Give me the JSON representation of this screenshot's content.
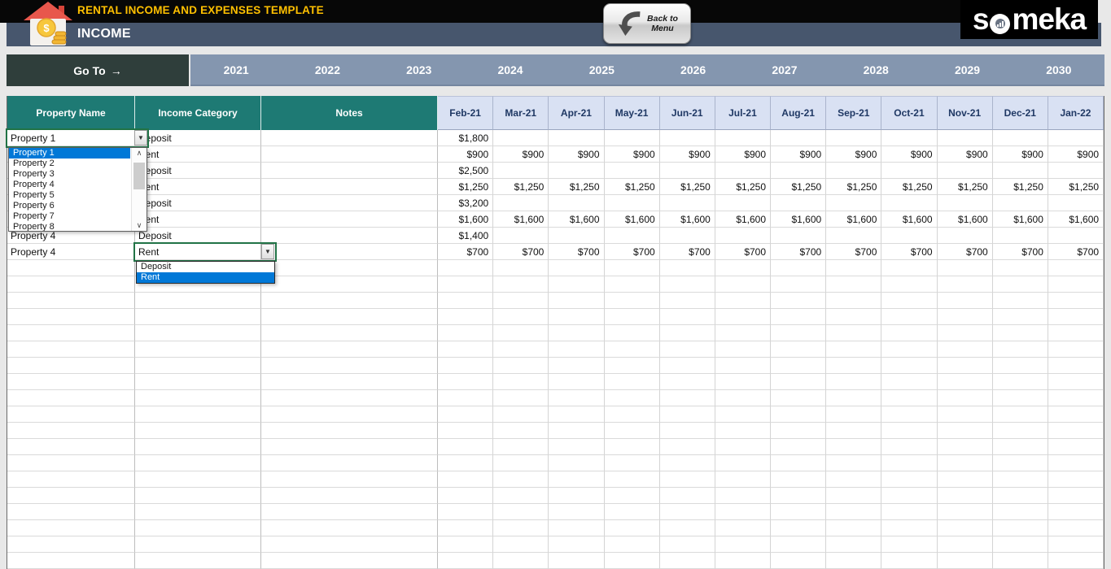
{
  "header": {
    "template_title": "RENTAL INCOME AND EXPENSES TEMPLATE",
    "sheet_title": "INCOME",
    "back_button": {
      "line1": "Back to",
      "line2": "Menu"
    },
    "brand": {
      "prefix": "s",
      "suffix": "meka",
      "full": "someka"
    }
  },
  "nav": {
    "goto_label": "Go To",
    "goto_arrow": "→",
    "years": [
      "2021",
      "2022",
      "2023",
      "2024",
      "2025",
      "2026",
      "2027",
      "2028",
      "2029",
      "2030"
    ]
  },
  "table": {
    "column_headers": [
      "Property Name",
      "Income Category",
      "Notes"
    ],
    "month_headers": [
      "Feb-21",
      "Mar-21",
      "Apr-21",
      "May-21",
      "Jun-21",
      "Jul-21",
      "Aug-21",
      "Sep-21",
      "Oct-21",
      "Nov-21",
      "Dec-21",
      "Jan-22"
    ],
    "rows": [
      {
        "property": "Property 1",
        "category": "Deposit",
        "notes": "",
        "values": [
          "$1,800",
          "",
          "",
          "",
          "",
          "",
          "",
          "",
          "",
          "",
          "",
          ""
        ]
      },
      {
        "property": "",
        "category": "Rent",
        "notes": "",
        "values": [
          "$900",
          "$900",
          "$900",
          "$900",
          "$900",
          "$900",
          "$900",
          "$900",
          "$900",
          "$900",
          "$900",
          "$900"
        ]
      },
      {
        "property": "",
        "category": "Deposit",
        "notes": "",
        "values": [
          "$2,500",
          "",
          "",
          "",
          "",
          "",
          "",
          "",
          "",
          "",
          "",
          ""
        ]
      },
      {
        "property": "",
        "category": "Rent",
        "notes": "",
        "values": [
          "$1,250",
          "$1,250",
          "$1,250",
          "$1,250",
          "$1,250",
          "$1,250",
          "$1,250",
          "$1,250",
          "$1,250",
          "$1,250",
          "$1,250",
          "$1,250"
        ]
      },
      {
        "property": "",
        "category": "Deposit",
        "notes": "",
        "values": [
          "$3,200",
          "",
          "",
          "",
          "",
          "",
          "",
          "",
          "",
          "",
          "",
          ""
        ]
      },
      {
        "property": "",
        "category": "Rent",
        "notes": "",
        "values": [
          "$1,600",
          "$1,600",
          "$1,600",
          "$1,600",
          "$1,600",
          "$1,600",
          "$1,600",
          "$1,600",
          "$1,600",
          "$1,600",
          "$1,600",
          "$1,600"
        ]
      },
      {
        "property": "Property 4",
        "category": "Deposit",
        "notes": "",
        "values": [
          "$1,400",
          "",
          "",
          "",
          "",
          "",
          "",
          "",
          "",
          "",
          "",
          ""
        ]
      },
      {
        "property": "Property 4",
        "category": "Rent",
        "notes": "",
        "values": [
          "$700",
          "$700",
          "$700",
          "$700",
          "$700",
          "$700",
          "$700",
          "$700",
          "$700",
          "$700",
          "$700",
          "$700"
        ]
      }
    ],
    "empty_row_count": 19
  },
  "dropdowns": {
    "property": {
      "items": [
        "Property 1",
        "Property 2",
        "Property 3",
        "Property 4",
        "Property 5",
        "Property 6",
        "Property 7",
        "Property 8"
      ],
      "selected": "Property 1"
    },
    "category": {
      "items": [
        "Deposit",
        "Rent"
      ],
      "selected": "Rent"
    }
  },
  "colors": {
    "accent_teal": "#1E7A74",
    "year_bar": "#8496AF",
    "goto_bar": "#2F3E3B",
    "title_yellow": "#FFC000",
    "slate_bar": "#47566D",
    "month_header_bg": "#D9E1F3",
    "month_header_text": "#1F3864",
    "selection_green": "#217346",
    "dropdown_highlight": "#0078D7"
  }
}
